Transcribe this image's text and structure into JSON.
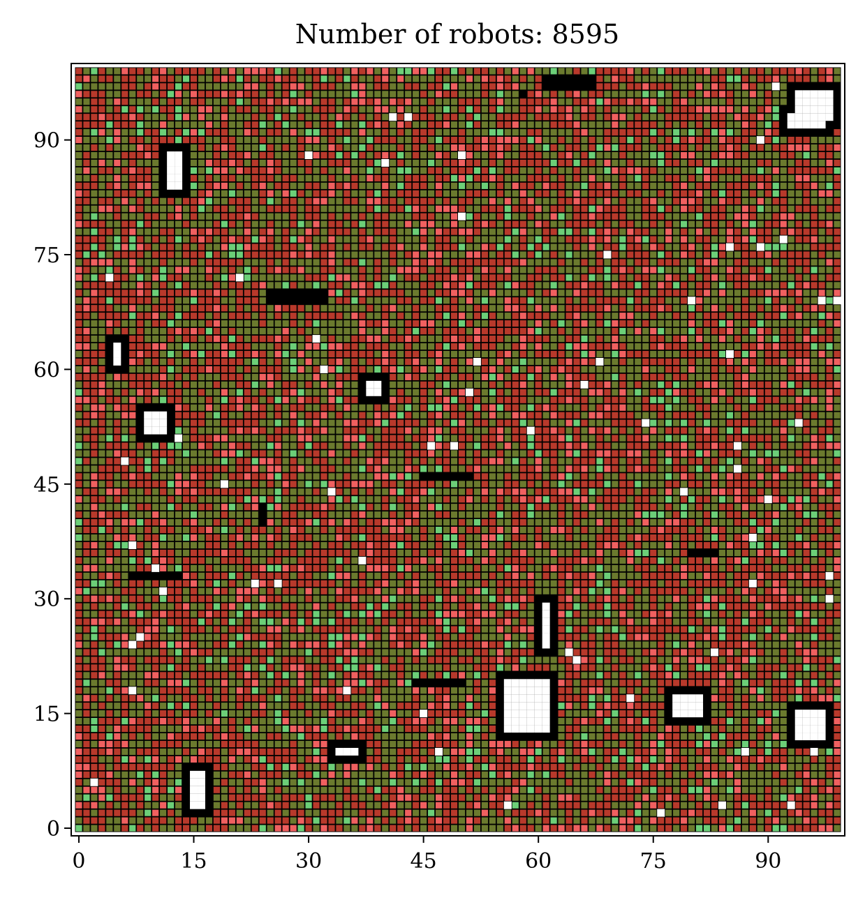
{
  "chart_data": {
    "type": "heatmap",
    "title": "Number of robots: 8595",
    "xlabel": "",
    "ylabel": "",
    "grid_size": 100,
    "xlim": [
      -1,
      100
    ],
    "ylim": [
      -1,
      100
    ],
    "x_ticks": [
      0,
      15,
      30,
      45,
      60,
      75,
      90
    ],
    "y_ticks": [
      0,
      15,
      30,
      45,
      60,
      75,
      90
    ],
    "colors": {
      "background": "#000000",
      "robot_dark_red": "#b8392b",
      "robot_olive": "#6b7a2e",
      "robot_light_red": "#f06060",
      "robot_light_green": "#6ccf78",
      "empty": "#ffffff"
    },
    "obstacles": [
      {
        "x0": 12,
        "x1": 13,
        "y0": 84,
        "y1": 88
      },
      {
        "x0": 94,
        "x1": 98,
        "y0": 93,
        "y1": 96
      },
      {
        "x0": 93,
        "x1": 97,
        "y0": 92,
        "y1": 93
      },
      {
        "x0": 5,
        "x1": 5,
        "y0": 61,
        "y1": 63
      },
      {
        "x0": 38,
        "x1": 39,
        "y0": 57,
        "y1": 58
      },
      {
        "x0": 9,
        "x1": 11,
        "y0": 52,
        "y1": 54
      },
      {
        "x0": 61,
        "x1": 61,
        "y0": 24,
        "y1": 29
      },
      {
        "x0": 56,
        "x1": 61,
        "y0": 13,
        "y1": 19
      },
      {
        "x0": 78,
        "x1": 81,
        "y0": 15,
        "y1": 17
      },
      {
        "x0": 94,
        "x1": 97,
        "y0": 12,
        "y1": 15
      },
      {
        "x0": 34,
        "x1": 36,
        "y0": 10,
        "y1": 10
      },
      {
        "x0": 15,
        "x1": 16,
        "y0": 3,
        "y1": 7
      }
    ],
    "blocked_walls": [
      {
        "x0": 25,
        "x1": 32,
        "y0": 69,
        "y1": 70
      },
      {
        "x0": 61,
        "x1": 67,
        "y0": 97,
        "y1": 98
      },
      {
        "x0": 58,
        "x1": 58,
        "y0": 96,
        "y1": 96
      },
      {
        "x0": 45,
        "x1": 51,
        "y0": 46,
        "y1": 46
      },
      {
        "x0": 24,
        "x1": 24,
        "y0": 40,
        "y1": 42
      },
      {
        "x0": 80,
        "x1": 83,
        "y0": 36,
        "y1": 36
      },
      {
        "x0": 7,
        "x1": 13,
        "y0": 33,
        "y1": 33
      },
      {
        "x0": 44,
        "x1": 50,
        "y0": 19,
        "y1": 19
      }
    ],
    "obstacle_border": 1,
    "stray_empty_cells": [
      [
        2,
        6
      ],
      [
        4,
        72
      ],
      [
        6,
        48
      ],
      [
        7,
        37
      ],
      [
        7,
        18
      ],
      [
        7,
        24
      ],
      [
        8,
        25
      ],
      [
        10,
        34
      ],
      [
        11,
        31
      ],
      [
        13,
        51
      ],
      [
        19,
        45
      ],
      [
        21,
        72
      ],
      [
        23,
        32
      ],
      [
        26,
        32
      ],
      [
        30,
        88
      ],
      [
        31,
        64
      ],
      [
        32,
        60
      ],
      [
        33,
        44
      ],
      [
        35,
        18
      ],
      [
        37,
        35
      ],
      [
        40,
        87
      ],
      [
        41,
        93
      ],
      [
        43,
        93
      ],
      [
        45,
        15
      ],
      [
        46,
        50
      ],
      [
        47,
        10
      ],
      [
        49,
        50
      ],
      [
        50,
        80
      ],
      [
        50,
        88
      ],
      [
        51,
        57
      ],
      [
        52,
        61
      ],
      [
        56,
        3
      ],
      [
        59,
        52
      ],
      [
        64,
        23
      ],
      [
        65,
        22
      ],
      [
        66,
        58
      ],
      [
        68,
        61
      ],
      [
        69,
        75
      ],
      [
        72,
        17
      ],
      [
        74,
        53
      ],
      [
        76,
        2
      ],
      [
        79,
        44
      ],
      [
        80,
        69
      ],
      [
        83,
        23
      ],
      [
        84,
        3
      ],
      [
        85,
        62
      ],
      [
        85,
        76
      ],
      [
        86,
        50
      ],
      [
        86,
        47
      ],
      [
        87,
        10
      ],
      [
        88,
        38
      ],
      [
        88,
        32
      ],
      [
        89,
        90
      ],
      [
        89,
        76
      ],
      [
        90,
        43
      ],
      [
        91,
        97
      ],
      [
        92,
        77
      ],
      [
        93,
        3
      ],
      [
        94,
        53
      ],
      [
        96,
        10
      ],
      [
        97,
        69
      ],
      [
        98,
        33
      ],
      [
        98,
        30
      ],
      [
        99,
        69
      ]
    ]
  }
}
